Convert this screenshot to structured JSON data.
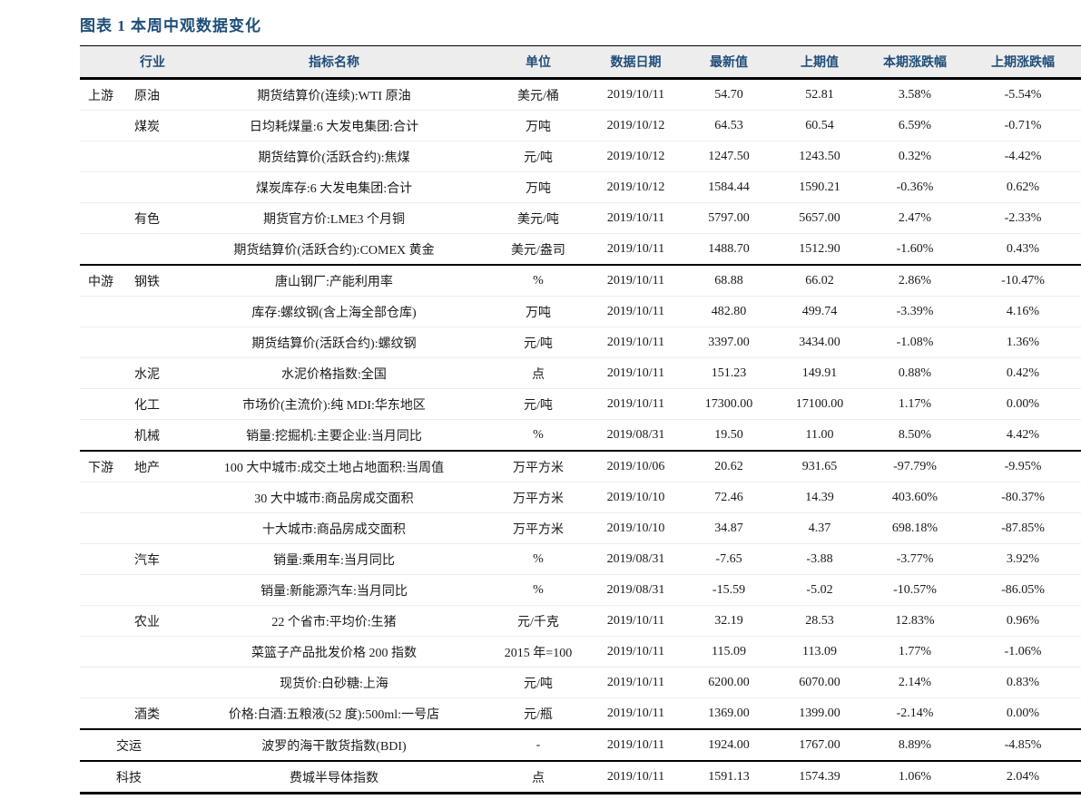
{
  "title": "图表 1 本周中观数据变化",
  "colors": {
    "title_text": "#1F4E79",
    "header_text": "#1F4E79",
    "header_background": "#EEEDEE",
    "rule_color": "#000000",
    "body_text": "#1a1a1a"
  },
  "table": {
    "headers": [
      "行业",
      "指标名称",
      "单位",
      "数据日期",
      "最新值",
      "上期值",
      "本期涨跌幅",
      "上期涨跌幅"
    ],
    "sections": [
      {
        "name": "upstream",
        "rows": [
          {
            "sector": "上游",
            "industry": "原油",
            "indicator": "期货结算价(连续):WTI 原油",
            "unit": "美元/桶",
            "date": "2019/10/11",
            "latest": "54.70",
            "prev": "52.81",
            "change": "3.58%",
            "prev_change": "-5.54%"
          },
          {
            "sector": "",
            "industry": "煤炭",
            "indicator": "日均耗煤量:6 大发电集团:合计",
            "unit": "万吨",
            "date": "2019/10/12",
            "latest": "64.53",
            "prev": "60.54",
            "change": "6.59%",
            "prev_change": "-0.71%"
          },
          {
            "sector": "",
            "industry": "",
            "indicator": "期货结算价(活跃合约):焦煤",
            "unit": "元/吨",
            "date": "2019/10/12",
            "latest": "1247.50",
            "prev": "1243.50",
            "change": "0.32%",
            "prev_change": "-4.42%"
          },
          {
            "sector": "",
            "industry": "",
            "indicator": "煤炭库存:6 大发电集团:合计",
            "unit": "万吨",
            "date": "2019/10/12",
            "latest": "1584.44",
            "prev": "1590.21",
            "change": "-0.36%",
            "prev_change": "0.62%"
          },
          {
            "sector": "",
            "industry": "有色",
            "indicator": "期货官方价:LME3 个月铜",
            "unit": "美元/吨",
            "date": "2019/10/11",
            "latest": "5797.00",
            "prev": "5657.00",
            "change": "2.47%",
            "prev_change": "-2.33%"
          },
          {
            "sector": "",
            "industry": "",
            "indicator": "期货结算价(活跃合约):COMEX 黄金",
            "unit": "美元/盎司",
            "date": "2019/10/11",
            "latest": "1488.70",
            "prev": "1512.90",
            "change": "-1.60%",
            "prev_change": "0.43%"
          }
        ]
      },
      {
        "name": "midstream",
        "rows": [
          {
            "sector": "中游",
            "industry": "钢铁",
            "indicator": "唐山钢厂:产能利用率",
            "unit": "%",
            "date": "2019/10/11",
            "latest": "68.88",
            "prev": "66.02",
            "change": "2.86%",
            "prev_change": "-10.47%"
          },
          {
            "sector": "",
            "industry": "",
            "indicator": "库存:螺纹钢(含上海全部仓库)",
            "unit": "万吨",
            "date": "2019/10/11",
            "latest": "482.80",
            "prev": "499.74",
            "change": "-3.39%",
            "prev_change": "4.16%"
          },
          {
            "sector": "",
            "industry": "",
            "indicator": "期货结算价(活跃合约):螺纹钢",
            "unit": "元/吨",
            "date": "2019/10/11",
            "latest": "3397.00",
            "prev": "3434.00",
            "change": "-1.08%",
            "prev_change": "1.36%"
          },
          {
            "sector": "",
            "industry": "水泥",
            "indicator": "水泥价格指数:全国",
            "unit": "点",
            "date": "2019/10/11",
            "latest": "151.23",
            "prev": "149.91",
            "change": "0.88%",
            "prev_change": "0.42%"
          },
          {
            "sector": "",
            "industry": "化工",
            "indicator": "市场价(主流价):纯 MDI:华东地区",
            "unit": "元/吨",
            "date": "2019/10/11",
            "latest": "17300.00",
            "prev": "17100.00",
            "change": "1.17%",
            "prev_change": "0.00%"
          },
          {
            "sector": "",
            "industry": "机械",
            "indicator": "销量:挖掘机:主要企业:当月同比",
            "unit": "%",
            "date": "2019/08/31",
            "latest": "19.50",
            "prev": "11.00",
            "change": "8.50%",
            "prev_change": "4.42%"
          }
        ]
      },
      {
        "name": "downstream",
        "rows": [
          {
            "sector": "下游",
            "industry": "地产",
            "indicator": "100 大中城市:成交土地占地面积:当周值",
            "unit": "万平方米",
            "date": "2019/10/06",
            "latest": "20.62",
            "prev": "931.65",
            "change": "-97.79%",
            "prev_change": "-9.95%"
          },
          {
            "sector": "",
            "industry": "",
            "indicator": "30 大中城市:商品房成交面积",
            "unit": "万平方米",
            "date": "2019/10/10",
            "latest": "72.46",
            "prev": "14.39",
            "change": "403.60%",
            "prev_change": "-80.37%"
          },
          {
            "sector": "",
            "industry": "",
            "indicator": "十大城市:商品房成交面积",
            "unit": "万平方米",
            "date": "2019/10/10",
            "latest": "34.87",
            "prev": "4.37",
            "change": "698.18%",
            "prev_change": "-87.85%"
          },
          {
            "sector": "",
            "industry": "汽车",
            "indicator": "销量:乘用车:当月同比",
            "unit": "%",
            "date": "2019/08/31",
            "latest": "-7.65",
            "prev": "-3.88",
            "change": "-3.77%",
            "prev_change": "3.92%"
          },
          {
            "sector": "",
            "industry": "",
            "indicator": "销量:新能源汽车:当月同比",
            "unit": "%",
            "date": "2019/08/31",
            "latest": "-15.59",
            "prev": "-5.02",
            "change": "-10.57%",
            "prev_change": "-86.05%"
          },
          {
            "sector": "",
            "industry": "农业",
            "indicator": "22 个省市:平均价:生猪",
            "unit": "元/千克",
            "date": "2019/10/11",
            "latest": "32.19",
            "prev": "28.53",
            "change": "12.83%",
            "prev_change": "0.96%"
          },
          {
            "sector": "",
            "industry": "",
            "indicator": "菜篮子产品批发价格 200 指数",
            "unit": "2015 年=100",
            "date": "2019/10/11",
            "latest": "115.09",
            "prev": "113.09",
            "change": "1.77%",
            "prev_change": "-1.06%"
          },
          {
            "sector": "",
            "industry": "",
            "indicator": "现货价:白砂糖:上海",
            "unit": "元/吨",
            "date": "2019/10/11",
            "latest": "6200.00",
            "prev": "6070.00",
            "change": "2.14%",
            "prev_change": "0.83%"
          },
          {
            "sector": "",
            "industry": "酒类",
            "indicator": "价格:白酒:五粮液(52 度):500ml:一号店",
            "unit": "元/瓶",
            "date": "2019/10/11",
            "latest": "1369.00",
            "prev": "1399.00",
            "change": "-2.14%",
            "prev_change": "0.00%"
          }
        ]
      },
      {
        "name": "transport",
        "rows": [
          {
            "sector": "交运",
            "merged": true,
            "indicator": "波罗的海干散货指数(BDI)",
            "unit": "-",
            "date": "2019/10/11",
            "latest": "1924.00",
            "prev": "1767.00",
            "change": "8.89%",
            "prev_change": "-4.85%"
          }
        ]
      },
      {
        "name": "technology",
        "rows": [
          {
            "sector": "科技",
            "merged": true,
            "indicator": "费城半导体指数",
            "unit": "点",
            "date": "2019/10/11",
            "latest": "1591.13",
            "prev": "1574.39",
            "change": "1.06%",
            "prev_change": "2.04%"
          }
        ]
      }
    ]
  }
}
